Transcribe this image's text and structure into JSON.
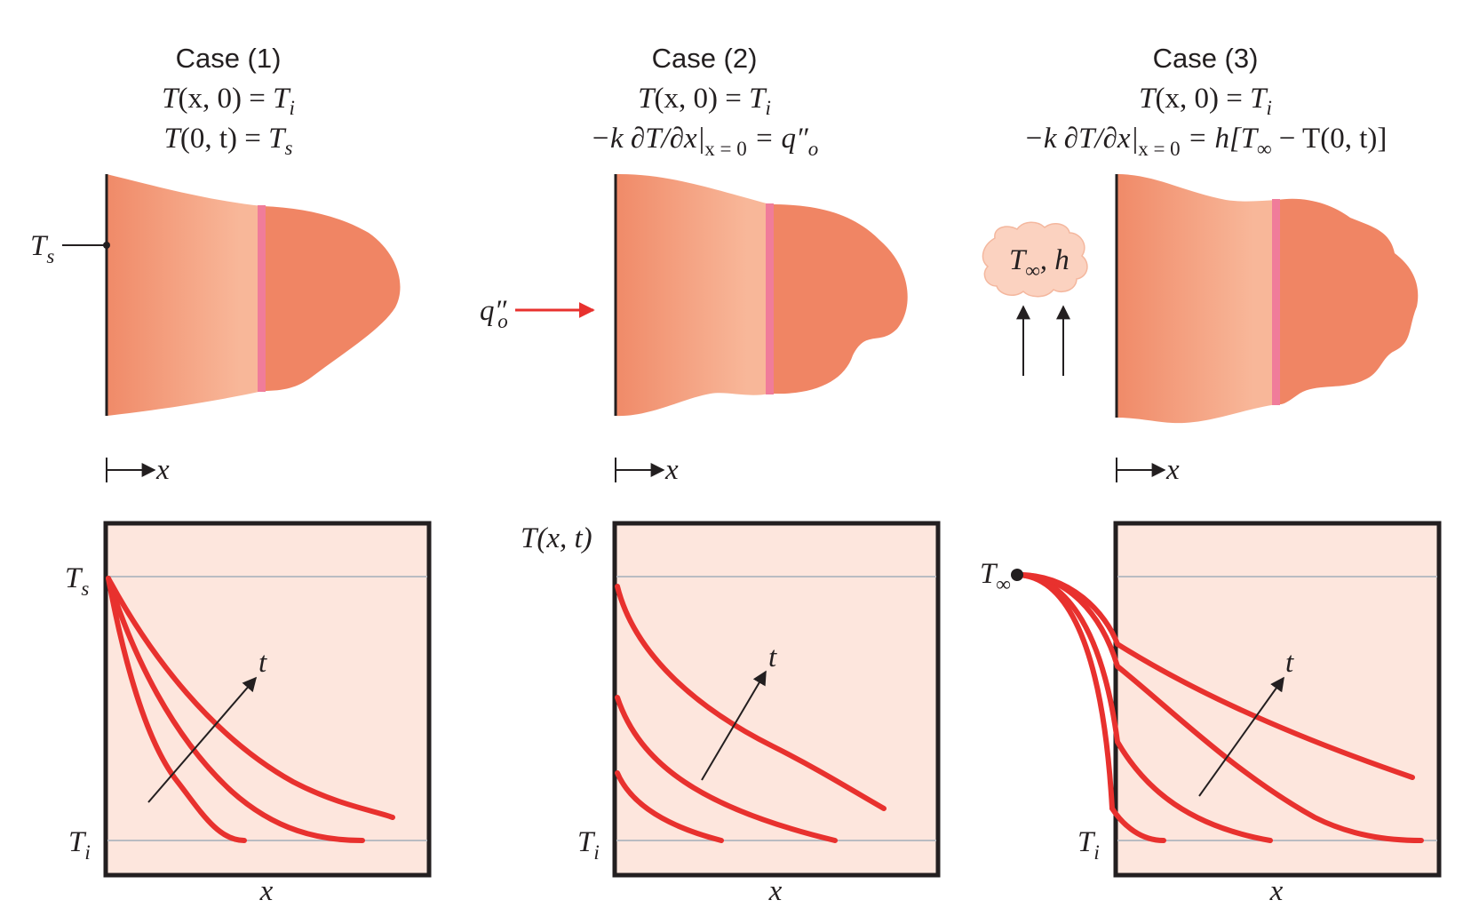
{
  "cases": [
    {
      "title": "Case (1)",
      "initial_condition": {
        "lhs": "T",
        "args": "(x, 0)",
        "eq": " = ",
        "var": "T",
        "sub": "i"
      },
      "boundary_condition": {
        "lhs": "T",
        "args": "(0, t)",
        "eq": " = ",
        "var": "T",
        "sub": "s"
      },
      "surface_label": {
        "var": "T",
        "sub": "s"
      },
      "x_arrow_label": "x",
      "plot": {
        "y_top_label": {
          "var": "T",
          "sub": "s"
        },
        "y_bottom_label": {
          "var": "T",
          "sub": "i"
        },
        "x_label": "x",
        "time_arrow_label": "t"
      }
    },
    {
      "title": "Case (2)",
      "initial_condition": {
        "lhs": "T",
        "args": "(x, 0)",
        "eq": " = ",
        "var": "T",
        "sub": "i"
      },
      "boundary_condition": {
        "text": "−k ∂T/∂x",
        "eval_sub": "x = 0",
        "rhs": " = q″",
        "rhs_sub": "o"
      },
      "flux_label": {
        "var": "q″",
        "sub": "o"
      },
      "x_arrow_label": "x",
      "plot": {
        "y_axis_label": "T(x, t)",
        "y_bottom_label": {
          "var": "T",
          "sub": "i"
        },
        "x_label": "x",
        "time_arrow_label": "t"
      }
    },
    {
      "title": "Case (3)",
      "initial_condition": {
        "lhs": "T",
        "args": "(x, 0)",
        "eq": " = ",
        "var": "T",
        "sub": "i"
      },
      "boundary_condition": {
        "text": "−k ∂T/∂x",
        "eval_sub": "x = 0",
        "rhs_a": " = h[T",
        "rhs_sub": "∞",
        "rhs_b": " − T(0, t)]"
      },
      "fluid_label": {
        "var": "T",
        "sub": "∞",
        "rest": ", h"
      },
      "x_arrow_label": "x",
      "plot": {
        "y_top_label": {
          "var": "T",
          "sub": "∞"
        },
        "y_bottom_label": {
          "var": "T",
          "sub": "i"
        },
        "x_label": "x",
        "time_arrow_label": "t"
      }
    }
  ],
  "colors": {
    "solid_light": "#f7b595",
    "solid_dark": "#f08564",
    "band": "#f07c9a",
    "plot_bg": "#fde6dd",
    "curve": "#e8312e",
    "flux_arrow": "#e8312e",
    "cloud": "#fbd2c0"
  }
}
